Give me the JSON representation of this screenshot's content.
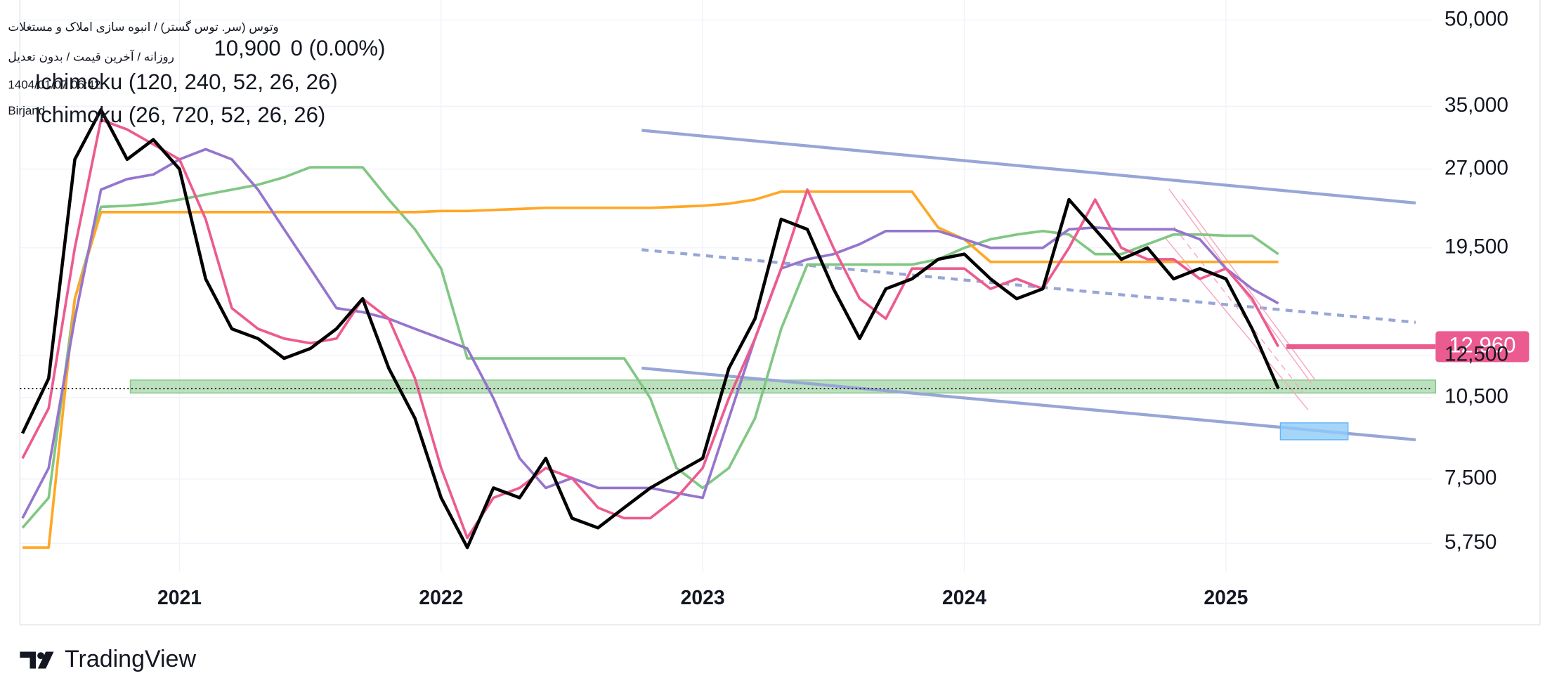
{
  "chart_data": {
    "type": "line",
    "title": "وتوس (سر. توس گستر) / انبوه سازی املاک و مستغلات",
    "subtitle": "روزانه / آخرین قیمت / بدون تعدیل",
    "timestamp": "1404/01/07 06:42",
    "location": "Birjand",
    "indicators": [
      "Ichimoku (120, 240, 52, 26, 26)",
      "Ichimoku (26, 720, 52, 26, 26)"
    ],
    "last_price": {
      "value": 10900,
      "label": "10,900"
    },
    "change": "0 (0.00%)",
    "price_marker": {
      "value": 12960,
      "label": "12,960"
    },
    "ylog": true,
    "grid": true,
    "xlim": [
      2020.39,
      2025.79
    ],
    "xticks": [
      2021,
      2022,
      2023,
      2024,
      2025
    ],
    "ylim": [
      4800,
      54300
    ],
    "yticks": [
      {
        "value": 5750,
        "label": "5,750"
      },
      {
        "value": 7500,
        "label": "7,500"
      },
      {
        "value": 10500,
        "label": "10,500"
      },
      {
        "value": 12500,
        "label": "12,500"
      },
      {
        "value": 19500,
        "label": "19,500"
      },
      {
        "value": 27000,
        "label": "27,000"
      },
      {
        "value": 35000,
        "label": "35,000"
      },
      {
        "value": 50000,
        "label": "50,000"
      }
    ],
    "x": [
      2020.4,
      2020.5,
      2020.6,
      2020.7,
      2020.8,
      2020.9,
      2021.0,
      2021.1,
      2021.2,
      2021.3,
      2021.4,
      2021.5,
      2021.6,
      2021.7,
      2021.8,
      2021.9,
      2022.0,
      2022.1,
      2022.2,
      2022.3,
      2022.4,
      2022.5,
      2022.6,
      2022.7,
      2022.8,
      2022.9,
      2023.0,
      2023.1,
      2023.2,
      2023.3,
      2023.4,
      2023.5,
      2023.6,
      2023.7,
      2023.8,
      2023.9,
      2024.0,
      2024.1,
      2024.2,
      2024.3,
      2024.4,
      2024.5,
      2024.6,
      2024.7,
      2024.8,
      2024.9,
      2025.0,
      2025.1,
      2025.2
    ],
    "series": [
      {
        "color": "#81c784",
        "values": [
          6130,
          6940,
          15800,
          23100,
          23200,
          23400,
          23800,
          24300,
          24800,
          25300,
          26100,
          27200,
          27200,
          27200,
          23800,
          21050,
          17900,
          12350,
          12350,
          12350,
          12350,
          12350,
          12350,
          12350,
          10470,
          7850,
          7230,
          7850,
          9640,
          13950,
          18200,
          18200,
          18200,
          18200,
          18200,
          18600,
          19500,
          20200,
          20600,
          20900,
          20600,
          19000,
          19000,
          19800,
          20600,
          20600,
          20500,
          20500,
          19000
        ]
      },
      {
        "color": "#ffa726",
        "values": [
          5650,
          5650,
          15800,
          22600,
          22600,
          22600,
          22600,
          22600,
          22600,
          22600,
          22600,
          22600,
          22600,
          22600,
          22600,
          22600,
          22700,
          22700,
          22800,
          22900,
          23000,
          23000,
          23000,
          23000,
          23000,
          23100,
          23200,
          23400,
          23800,
          24600,
          24600,
          24600,
          24600,
          24600,
          24600,
          21200,
          20200,
          18400,
          18400,
          18400,
          18400,
          18400,
          18400,
          18400,
          18400,
          18400,
          18400,
          18400,
          18400
        ]
      },
      {
        "color": "#9575cd",
        "values": [
          6380,
          7850,
          14550,
          24800,
          25900,
          26400,
          28100,
          29300,
          28100,
          24800,
          21050,
          17900,
          15200,
          14950,
          14550,
          13950,
          13400,
          12860,
          10470,
          8170,
          7230,
          7530,
          7230,
          7230,
          7230,
          7080,
          6940,
          9640,
          13400,
          17900,
          18600,
          19000,
          19800,
          20900,
          20900,
          20900,
          20200,
          19500,
          19500,
          19500,
          21050,
          21200,
          21050,
          21050,
          21050,
          20200,
          17900,
          16460,
          15500
        ]
      },
      {
        "color": "#ec5b8f",
        "values": [
          8170,
          10050,
          19500,
          33100,
          31800,
          29900,
          28100,
          21950,
          15200,
          13950,
          13400,
          13150,
          13400,
          15800,
          14550,
          11370,
          7850,
          5880,
          6940,
          7230,
          7850,
          7530,
          6660,
          6380,
          6380,
          6940,
          7850,
          10470,
          13400,
          17900,
          24800,
          19500,
          15800,
          14550,
          17900,
          17900,
          17900,
          16460,
          17150,
          16460,
          19500,
          23800,
          19500,
          18600,
          18600,
          17150,
          17900,
          15800,
          12960
        ]
      },
      {
        "color": "#000000",
        "values": [
          9060,
          11370,
          28100,
          34500,
          28100,
          30500,
          27000,
          17150,
          13950,
          13400,
          12350,
          12860,
          13950,
          15800,
          11850,
          9640,
          6940,
          5650,
          7230,
          6940,
          8170,
          6380,
          6130,
          6660,
          7230,
          7690,
          8170,
          11850,
          14550,
          21950,
          21050,
          16460,
          13400,
          16460,
          17150,
          18600,
          19000,
          17150,
          15800,
          16460,
          23800,
          21050,
          18600,
          19500,
          17150,
          17900,
          17150,
          13950,
          10900
        ]
      }
    ]
  },
  "brand": "TradingView"
}
